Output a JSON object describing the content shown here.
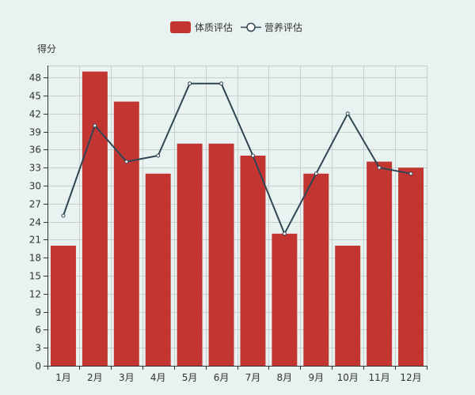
{
  "chart_data": {
    "type": "bar",
    "categories": [
      "1月",
      "2月",
      "3月",
      "4月",
      "5月",
      "6月",
      "7月",
      "8月",
      "9月",
      "10月",
      "11月",
      "12月"
    ],
    "series": [
      {
        "name": "体质评估",
        "type": "bar",
        "color": "#c23531",
        "values": [
          20,
          49,
          44,
          32,
          37,
          37,
          35,
          22,
          32,
          20,
          34,
          33
        ]
      },
      {
        "name": "营养评估",
        "type": "line",
        "color": "#2f4554",
        "values": [
          25,
          40,
          34,
          35,
          47,
          47,
          35,
          22,
          32,
          42,
          33,
          32
        ]
      }
    ],
    "ylabel": "得分",
    "ylim": [
      0,
      50
    ],
    "yticks": [
      0,
      3,
      6,
      9,
      12,
      15,
      18,
      21,
      24,
      27,
      30,
      33,
      36,
      39,
      42,
      45,
      48
    ],
    "grid": true,
    "legend_position": "top-center"
  }
}
